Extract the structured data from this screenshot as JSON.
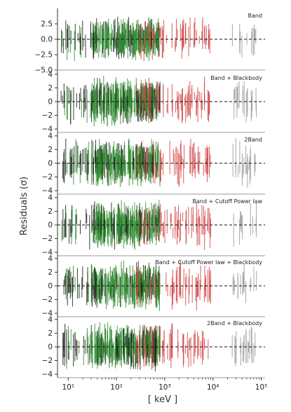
{
  "chart_data": {
    "type": "scatter",
    "ylabel": "Residuals (σ)",
    "xlabel": "[ keV ]",
    "xscale": "log",
    "xlim": [
      6,
      120000
    ],
    "x_ticks": [
      {
        "value": 10,
        "label": "10¹"
      },
      {
        "value": 100,
        "label": "10²"
      },
      {
        "value": 1000,
        "label": "10³"
      },
      {
        "value": 10000,
        "label": "10⁴"
      },
      {
        "value": 100000,
        "label": "10⁵"
      }
    ],
    "reference_line": 0,
    "series_colors": {
      "nai_low": "#1a1a1a",
      "nai_mid": "#2e8b2e",
      "bgo": "#d04040",
      "high": "#999999"
    },
    "panels": [
      {
        "label": "Band",
        "ylim": [
          -5,
          5
        ],
        "yticks": [
          2.5,
          0.0,
          -2.5,
          -5.0
        ],
        "ytick_labels": [
          "2.5",
          "0.0",
          "−2.5",
          "−5.0"
        ]
      },
      {
        "label": "Band + Blackbody",
        "ylim": [
          -4.5,
          4.5
        ],
        "yticks": [
          4,
          2,
          0,
          -2,
          -4
        ],
        "ytick_labels": [
          "4",
          "2",
          "0",
          "−2",
          "−4"
        ]
      },
      {
        "label": "2Band",
        "ylim": [
          -4.5,
          4.5
        ],
        "yticks": [
          4,
          2,
          0,
          -2,
          -4
        ],
        "ytick_labels": [
          "4",
          "2",
          "0",
          "−2",
          "−4"
        ]
      },
      {
        "label": "Band + Cutoff Power law",
        "ylim": [
          -4.5,
          4.5
        ],
        "yticks": [
          4,
          2,
          0,
          -2,
          -4
        ],
        "ytick_labels": [
          "4",
          "2",
          "0",
          "−2",
          "−4"
        ]
      },
      {
        "label": "Band + Cutoff Power law + Blackbody",
        "ylim": [
          -4.5,
          4.5
        ],
        "yticks": [
          4,
          2,
          0,
          -2,
          -4
        ],
        "ytick_labels": [
          "4",
          "2",
          "0",
          "−2",
          "−4"
        ]
      },
      {
        "label": "2Band + Blackbody",
        "ylim": [
          -4.5,
          4.5
        ],
        "yticks": [
          4,
          2,
          0,
          -2,
          -4
        ],
        "ytick_labels": [
          "4",
          "2",
          "0",
          "−2",
          "−4"
        ]
      }
    ]
  }
}
